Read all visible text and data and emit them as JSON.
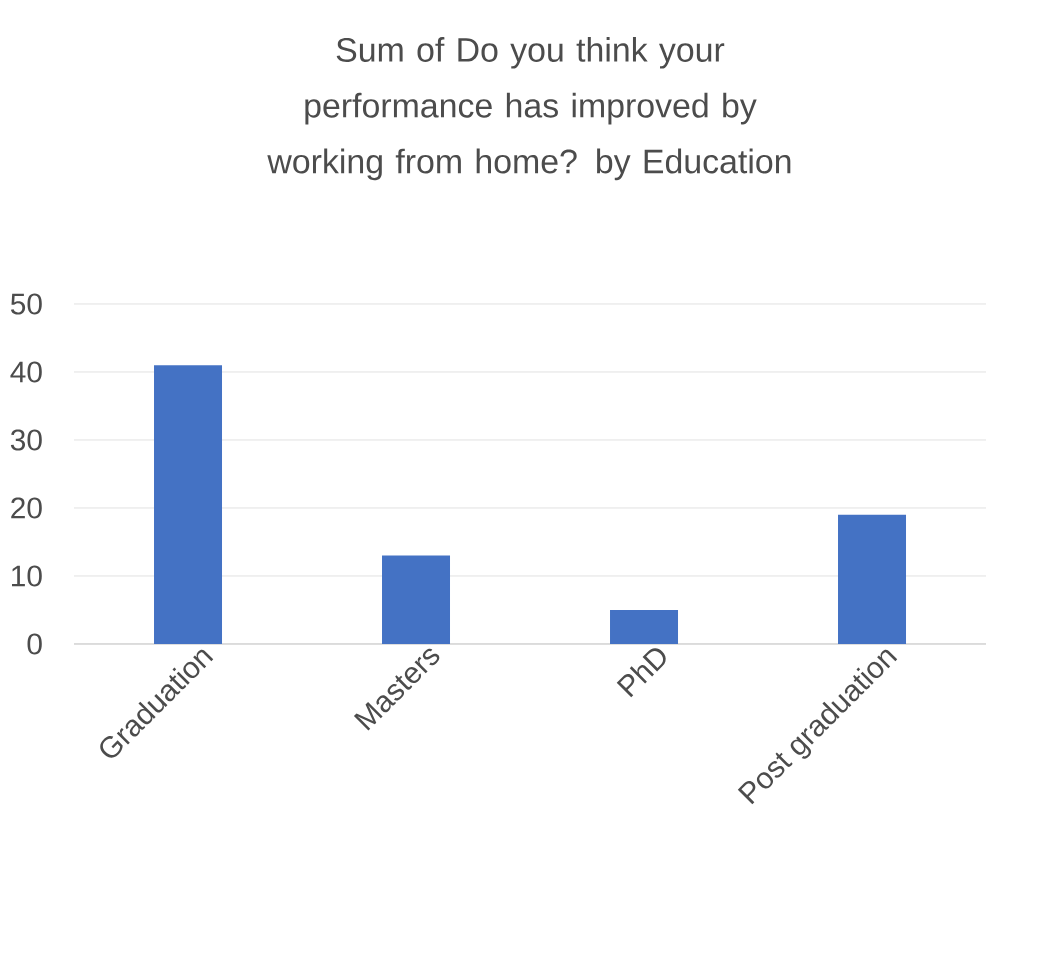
{
  "chart_data": {
    "type": "bar",
    "title": "Sum of Do you think your performance has improved by working from home? by Education",
    "categories": [
      "Graduation",
      "Masters",
      "PhD",
      "Post graduation"
    ],
    "values": [
      41,
      13,
      5,
      19
    ],
    "color": "#4472c4",
    "ylim": [
      0,
      50
    ],
    "yticks": [
      0,
      10,
      20,
      30,
      40,
      50
    ],
    "grid": "y"
  }
}
